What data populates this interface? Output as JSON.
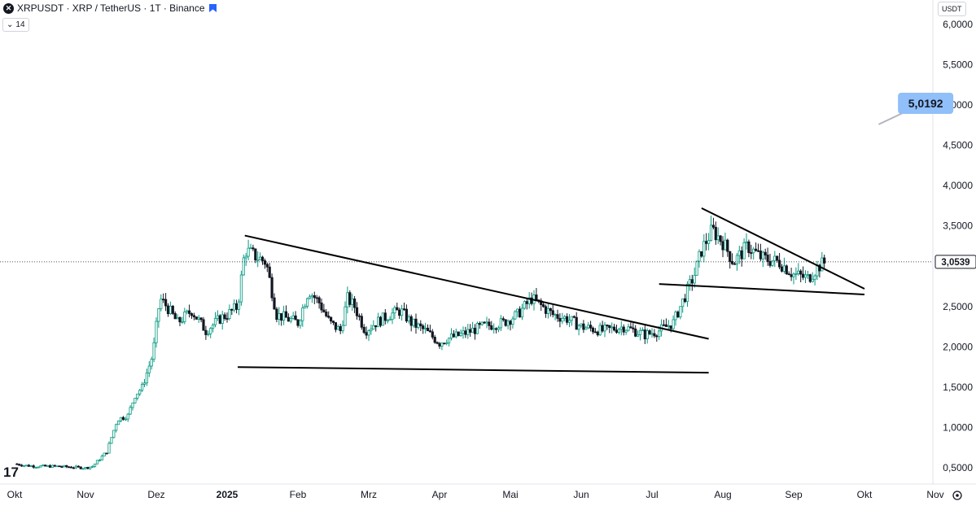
{
  "legend": {
    "symbol_badge": "✕",
    "title": "XRPUSDT · XRP / TetherUS · 1T · Binance"
  },
  "indicator_chip": {
    "chevron": "⌄",
    "value": "14"
  },
  "currency": "USDT",
  "price_label": "3,0539",
  "target_label": "5,0192",
  "tv_logo": "17",
  "colors": {
    "up": "#089981",
    "down": "#131722",
    "target": "#90bff9",
    "lines": "#000000"
  },
  "chart_data": {
    "type": "candlestick",
    "y_range": [
      0.3,
      6.3
    ],
    "y_ticks": [
      {
        "label": "6,0000",
        "value": 6.0
      },
      {
        "label": "5,5000",
        "value": 5.5
      },
      {
        "label": "5,0000",
        "value": 5.0
      },
      {
        "label": "4,5000",
        "value": 4.5
      },
      {
        "label": "4,0000",
        "value": 4.0
      },
      {
        "label": "3,5000",
        "value": 3.5
      },
      {
        "label": "2,5000",
        "value": 2.5
      },
      {
        "label": "2,0000",
        "value": 2.0
      },
      {
        "label": "1,5000",
        "value": 1.5
      },
      {
        "label": "1,0000",
        "value": 1.0
      },
      {
        "label": "0,5000",
        "value": 0.5
      }
    ],
    "x_ticks": [
      {
        "label": "Okt",
        "month": 0,
        "bold": false
      },
      {
        "label": "Nov",
        "month": 1,
        "bold": false
      },
      {
        "label": "Dez",
        "month": 2,
        "bold": false
      },
      {
        "label": "2025",
        "month": 3,
        "bold": true
      },
      {
        "label": "Feb",
        "month": 4,
        "bold": false
      },
      {
        "label": "Mrz",
        "month": 5,
        "bold": false
      },
      {
        "label": "Apr",
        "month": 6,
        "bold": false
      },
      {
        "label": "Mai",
        "month": 7,
        "bold": false
      },
      {
        "label": "Jun",
        "month": 8,
        "bold": false
      },
      {
        "label": "Jul",
        "month": 9,
        "bold": false
      },
      {
        "label": "Aug",
        "month": 10,
        "bold": false
      },
      {
        "label": "Sep",
        "month": 11,
        "bold": false
      },
      {
        "label": "Okt",
        "month": 12,
        "bold": false
      },
      {
        "label": "Nov",
        "month": 13,
        "bold": false
      }
    ],
    "last_price": 3.0539,
    "target_price": 5.0192,
    "price_path": [
      [
        0.0,
        0.55
      ],
      [
        0.15,
        0.53
      ],
      [
        0.3,
        0.52
      ],
      [
        0.6,
        0.52
      ],
      [
        1.0,
        0.5
      ],
      [
        1.1,
        0.52
      ],
      [
        1.3,
        0.7
      ],
      [
        1.45,
        1.1
      ],
      [
        1.6,
        1.15
      ],
      [
        1.7,
        1.4
      ],
      [
        1.8,
        1.5
      ],
      [
        1.95,
        1.9
      ],
      [
        2.05,
        2.6
      ],
      [
        2.15,
        2.5
      ],
      [
        2.3,
        2.3
      ],
      [
        2.5,
        2.45
      ],
      [
        2.7,
        2.2
      ],
      [
        2.9,
        2.35
      ],
      [
        3.0,
        2.4
      ],
      [
        3.15,
        2.5
      ],
      [
        3.25,
        3.2
      ],
      [
        3.35,
        3.15
      ],
      [
        3.55,
        3.05
      ],
      [
        3.7,
        2.4
      ],
      [
        3.85,
        2.35
      ],
      [
        4.0,
        2.3
      ],
      [
        4.15,
        2.7
      ],
      [
        4.3,
        2.55
      ],
      [
        4.45,
        2.3
      ],
      [
        4.6,
        2.2
      ],
      [
        4.7,
        2.6
      ],
      [
        4.8,
        2.5
      ],
      [
        4.95,
        2.2
      ],
      [
        5.1,
        2.3
      ],
      [
        5.3,
        2.4
      ],
      [
        5.45,
        2.45
      ],
      [
        5.6,
        2.3
      ],
      [
        5.8,
        2.2
      ],
      [
        6.0,
        2.05
      ],
      [
        6.1,
        2.1
      ],
      [
        6.3,
        2.15
      ],
      [
        6.6,
        2.25
      ],
      [
        6.9,
        2.3
      ],
      [
        7.1,
        2.4
      ],
      [
        7.3,
        2.6
      ],
      [
        7.45,
        2.5
      ],
      [
        7.6,
        2.4
      ],
      [
        7.8,
        2.35
      ],
      [
        8.0,
        2.25
      ],
      [
        8.3,
        2.2
      ],
      [
        8.6,
        2.25
      ],
      [
        8.9,
        2.15
      ],
      [
        9.1,
        2.2
      ],
      [
        9.3,
        2.3
      ],
      [
        9.45,
        2.6
      ],
      [
        9.6,
        2.9
      ],
      [
        9.7,
        3.2
      ],
      [
        9.85,
        3.45
      ],
      [
        10.0,
        3.3
      ],
      [
        10.15,
        3.05
      ],
      [
        10.35,
        3.25
      ],
      [
        10.55,
        3.1
      ],
      [
        10.8,
        3.05
      ],
      [
        11.0,
        2.9
      ],
      [
        11.2,
        2.85
      ],
      [
        11.35,
        3.0
      ],
      [
        11.45,
        3.05
      ]
    ],
    "trend_lines": [
      {
        "name": "upper-trend-line-1",
        "from": [
          3.25,
          3.38
        ],
        "to": [
          9.8,
          2.1
        ]
      },
      {
        "name": "lower-support-line-1",
        "from": [
          3.15,
          1.75
        ],
        "to": [
          9.8,
          1.68
        ]
      },
      {
        "name": "upper-trend-line-2",
        "from": [
          9.7,
          3.72
        ],
        "to": [
          12.0,
          2.72
        ]
      },
      {
        "name": "lower-support-line-2",
        "from": [
          9.1,
          2.78
        ],
        "to": [
          12.0,
          2.65
        ]
      }
    ],
    "target_arrow": {
      "from": [
        12.2,
        4.98
      ],
      "to": [
        12.45,
        5.0192
      ]
    },
    "grid": false,
    "legend": "top-left"
  }
}
